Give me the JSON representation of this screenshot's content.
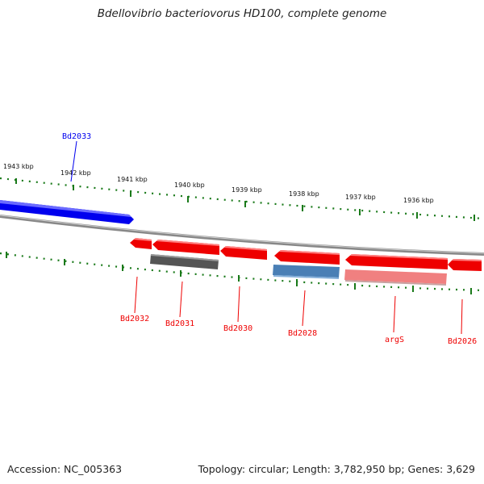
{
  "title": "Bdellovibrio bacteriovorus HD100, complete genome",
  "footer": {
    "accession": "Accession: NC_005363",
    "summary": "Topology: circular; Length: 3,782,950 bp; Genes: 3,629"
  },
  "ruler_labels": [
    "1943 kbp",
    "1942 kbp",
    "1941 kbp",
    "1940 kbp",
    "1939 kbp",
    "1938 kbp",
    "1937 kbp",
    "1936 kbp"
  ],
  "genes": [
    {
      "name": "Bd2033",
      "strand": "+",
      "color": "#0000ee"
    },
    {
      "name": "Bd2032",
      "strand": "-",
      "color": "#ee0000"
    },
    {
      "name": "Bd2031",
      "strand": "-",
      "color": "#ee0000"
    },
    {
      "name": "Bd2030",
      "strand": "-",
      "color": "#ee0000"
    },
    {
      "name": "Bd2028",
      "strand": "-",
      "color": "#ee0000"
    },
    {
      "name": "argS",
      "strand": "-",
      "color": "#ee0000"
    },
    {
      "name": "Bd2026",
      "strand": "-",
      "color": "#ee0000"
    }
  ],
  "colors": {
    "forward_gene": "#0000ee",
    "reverse_gene": "#ee0000",
    "ruler_ticks": "#1a7a1a",
    "backbone": "#888888",
    "feature_dark": "#555555",
    "feature_blue": "#4a7fb5",
    "feature_pink": "#f08080"
  }
}
